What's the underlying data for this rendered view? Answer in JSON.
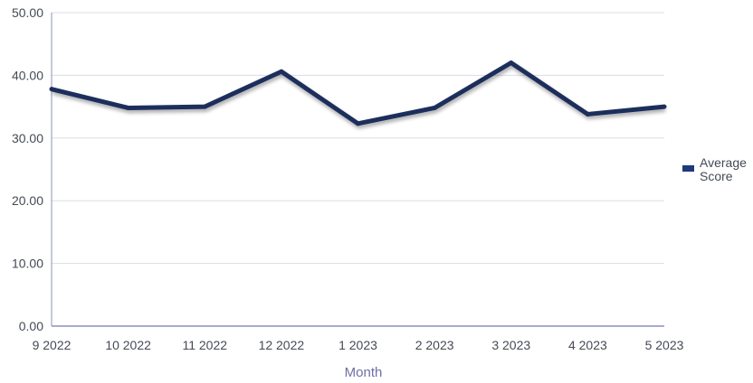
{
  "chart_data": {
    "type": "line",
    "categories": [
      "9 2022",
      "10 2022",
      "11 2022",
      "12 2022",
      "1 2023",
      "2 2023",
      "3 2023",
      "4 2023",
      "5 2023"
    ],
    "series": [
      {
        "name": "Average Score",
        "values": [
          37.8,
          34.8,
          35.0,
          40.6,
          32.3,
          34.8,
          42.0,
          33.8,
          35.0
        ],
        "color": "#1f2d5c"
      }
    ],
    "y_ticks": [
      "0.00",
      "10.00",
      "20.00",
      "30.00",
      "40.00",
      "50.00"
    ],
    "ylim": [
      0,
      50
    ],
    "xlabel": "Month",
    "ylabel": "",
    "legend": {
      "position": "right",
      "lines": [
        "Average",
        "Score"
      ]
    },
    "grid": true,
    "colors": {
      "line": "#1f2d5c",
      "grid": "#dcdde6",
      "axis": "#8b8fc4",
      "legend_swatch": "#1f3a7a"
    }
  }
}
